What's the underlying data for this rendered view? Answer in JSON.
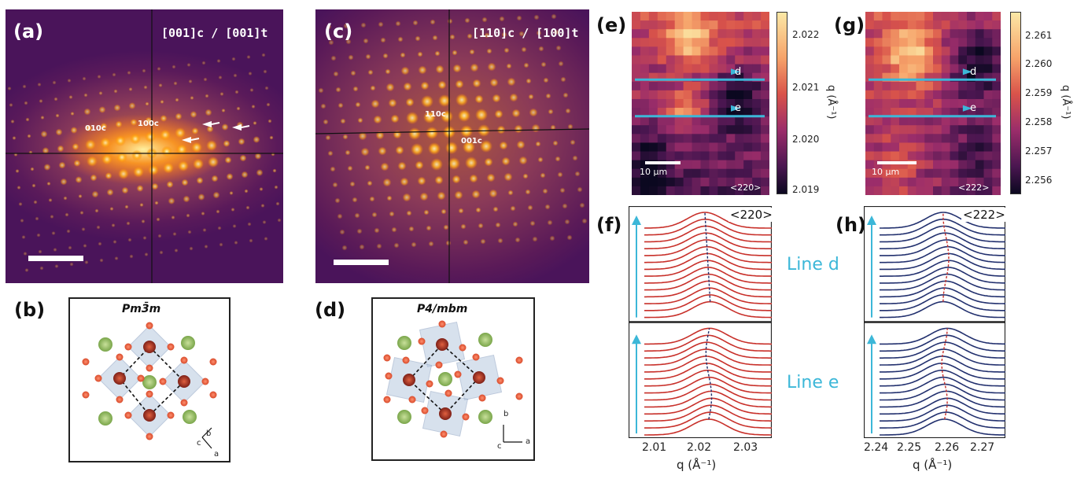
{
  "panels": {
    "a": {
      "label": "(a)",
      "zone": "[001]c / [001]t",
      "spots": [
        "010c",
        "100c"
      ]
    },
    "b": {
      "label": "(b)",
      "space_group": "Pm3̄m",
      "axes": [
        "b",
        "c",
        "a"
      ]
    },
    "c": {
      "label": "(c)",
      "zone": "[110]c / [100]t",
      "spots": [
        "110c",
        "001c"
      ]
    },
    "d": {
      "label": "(d)",
      "space_group": "P4/mbm",
      "axes": [
        "b",
        "c",
        "a"
      ]
    },
    "e": {
      "label": "(e)",
      "reflection": "<220>",
      "scalebar": "10 µm",
      "colorbar_label": "q (Å⁻¹)",
      "colorbar_ticks": [
        "2.022",
        "2.021",
        "2.020",
        "2.019"
      ],
      "line_labels": [
        "d",
        "e"
      ]
    },
    "f": {
      "label": "(f)",
      "reflection": "<220>",
      "xticks": [
        "2.01",
        "2.02",
        "2.03"
      ],
      "xlabel": "q (Å⁻¹)"
    },
    "g": {
      "label": "(g)",
      "reflection": "<222>",
      "scalebar": "10 µm",
      "colorbar_label": "q (Å⁻¹)",
      "colorbar_ticks": [
        "2.261",
        "2.260",
        "2.259",
        "2.258",
        "2.257",
        "2.256"
      ],
      "line_labels": [
        "d",
        "e"
      ]
    },
    "h": {
      "label": "(h)",
      "reflection": "<222>",
      "xticks": [
        "2.24",
        "2.25",
        "2.26",
        "2.27"
      ],
      "xlabel": "q (Å⁻¹)"
    }
  },
  "line_names": {
    "d": "Line d",
    "e": "Line e"
  },
  "colors": {
    "accent": "#3cb7d8",
    "red_curve": "#c8302a",
    "blue_curve": "#22306e"
  }
}
